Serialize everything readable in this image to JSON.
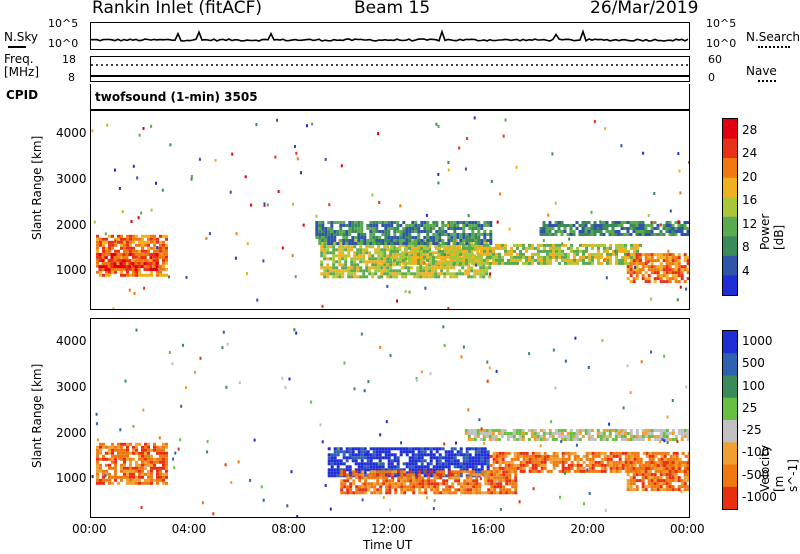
{
  "header": {
    "station": "Rankin Inlet (fitACF)",
    "beam": "Beam 15",
    "date": "26/Mar/2019"
  },
  "noise_panel": {
    "left_label": "N.Sky",
    "left_ticks": [
      "10^5",
      "10^0"
    ],
    "right_ticks": [
      "10^5",
      "10^0"
    ],
    "right_label": "N.Search"
  },
  "freq_panel": {
    "left_label_1": "Freq.",
    "left_label_2": "[MHz]",
    "left_ticks": [
      "18",
      "8"
    ],
    "right_ticks": [
      "60",
      "0"
    ],
    "right_label": "Nave"
  },
  "cpid_panel": {
    "label": "CPID",
    "mode": "twofsound (1-min) 3505"
  },
  "colors": {
    "power_scale": [
      "#1f2dd6",
      "#2f54a8",
      "#3a8a5a",
      "#5aaa50",
      "#a8c83a",
      "#f0b020",
      "#f07810",
      "#e83018",
      "#e00010"
    ],
    "velocity_scale": [
      "#1f2dd6",
      "#3060b0",
      "#3a8a5a",
      "#66c040",
      "#c0c0c0",
      "#f0a030",
      "#f07810",
      "#e83010"
    ]
  },
  "chart_data": [
    {
      "type": "heatmap",
      "title": "Power",
      "xlabel": "Time UT",
      "ylabel": "Slant Range [km]",
      "x_ticks": [
        "00:00",
        "04:00",
        "08:00",
        "12:00",
        "16:00",
        "20:00",
        "00:00"
      ],
      "xlim": [
        0,
        24
      ],
      "y_ticks": [
        "1000",
        "2000",
        "3000",
        "4000"
      ],
      "ylim": [
        180,
        4500
      ],
      "colorbar_label": "Power [dB]",
      "colorbar_ticks": [
        "4",
        "8",
        "12",
        "16",
        "20",
        "24",
        "28"
      ],
      "colorbar_range": [
        0,
        30
      ],
      "regions": [
        {
          "t0": 0.2,
          "t1": 3.0,
          "r0": 900,
          "r1": 1800,
          "level": 24
        },
        {
          "t0": 0.3,
          "t1": 2.8,
          "r0": 1050,
          "r1": 1400,
          "level": 28
        },
        {
          "t0": 9.2,
          "t1": 16.0,
          "r0": 900,
          "r1": 1700,
          "level": 18
        },
        {
          "t0": 12.0,
          "t1": 22.0,
          "r0": 1200,
          "r1": 1600,
          "level": 16
        },
        {
          "t0": 21.5,
          "t1": 24.0,
          "r0": 800,
          "r1": 1400,
          "level": 26
        },
        {
          "t0": 9.0,
          "t1": 16.0,
          "r0": 1600,
          "r1": 2100,
          "level": 8
        },
        {
          "t0": 18.0,
          "t1": 24.0,
          "r0": 1800,
          "r1": 2100,
          "level": 10
        }
      ]
    },
    {
      "type": "heatmap",
      "title": "Velocity",
      "xlabel": "Time UT",
      "ylabel": "Slant Range [km]",
      "x_ticks": [
        "00:00",
        "04:00",
        "08:00",
        "12:00",
        "16:00",
        "20:00",
        "00:00"
      ],
      "xlim": [
        0,
        24
      ],
      "y_ticks": [
        "1000",
        "2000",
        "3000",
        "4000"
      ],
      "ylim": [
        180,
        4500
      ],
      "colorbar_label": "Velocity [m s^-1]",
      "colorbar_ticks": [
        "1000",
        "500",
        "100",
        "25",
        "-25",
        "-100",
        "-500",
        "-1000"
      ],
      "regions": [
        {
          "t0": 0.2,
          "t1": 3.0,
          "r0": 900,
          "r1": 1800,
          "level": -300
        },
        {
          "t0": 9.5,
          "t1": 16.0,
          "r0": 1100,
          "r1": 1700,
          "level": 700
        },
        {
          "t0": 10.0,
          "t1": 17.0,
          "r0": 700,
          "r1": 1200,
          "level": -300
        },
        {
          "t0": 15.0,
          "t1": 24.0,
          "r0": 1850,
          "r1": 2100,
          "level": 0
        },
        {
          "t0": 16.0,
          "t1": 24.0,
          "r0": 1200,
          "r1": 1600,
          "level": -200
        },
        {
          "t0": 21.5,
          "t1": 24.0,
          "r0": 800,
          "r1": 1400,
          "level": -400
        }
      ]
    }
  ]
}
